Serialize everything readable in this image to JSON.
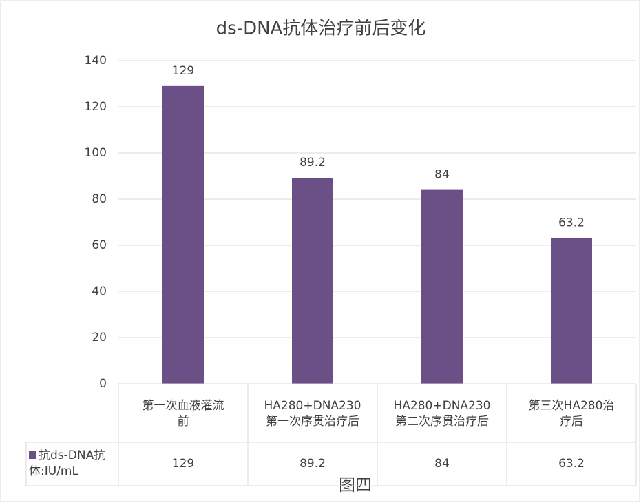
{
  "chart_data": {
    "type": "bar",
    "title": "ds-DNA抗体治疗前后变化",
    "categories": [
      "第一次血液灌流前",
      "HA280+DNA230第一次序贯治疗后",
      "HA280+DNA230第二次序贯治疗后",
      "第三次HA280治疗后"
    ],
    "series": [
      {
        "name": "抗ds-DNA抗体:IU/mL",
        "color": "#6a5087",
        "values": [
          129,
          89.2,
          84,
          63.2
        ]
      }
    ],
    "ylim": [
      0,
      140
    ],
    "yticks": [
      0,
      20,
      40,
      60,
      80,
      100,
      120,
      140
    ],
    "grid": true,
    "data_table": true,
    "caption": "图四"
  }
}
